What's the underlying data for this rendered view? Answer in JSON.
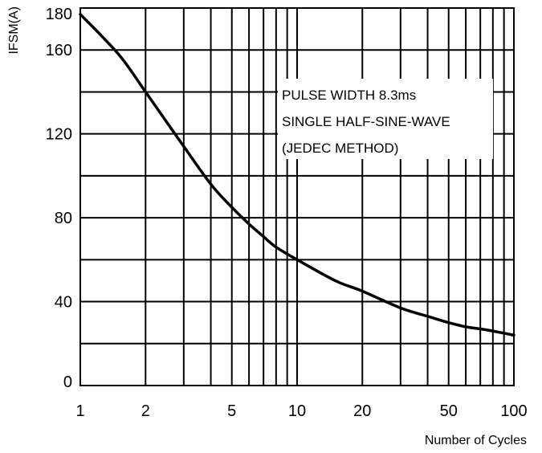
{
  "chart_data": {
    "type": "line",
    "title": "",
    "xlabel": "Number of Cycles",
    "ylabel": "IFSM(A)",
    "x_scale": "log",
    "xlim": [
      1,
      100
    ],
    "ylim": [
      0,
      180
    ],
    "x_ticks": [
      {
        "value": 1,
        "label": "1"
      },
      {
        "value": 2,
        "label": "2"
      },
      {
        "value": 5,
        "label": "5"
      },
      {
        "value": 10,
        "label": "10"
      },
      {
        "value": 20,
        "label": "20"
      },
      {
        "value": 50,
        "label": "50"
      },
      {
        "value": 100,
        "label": "100"
      }
    ],
    "x_grid": [
      1,
      2,
      3,
      4,
      5,
      6,
      7,
      8,
      9,
      10,
      20,
      30,
      40,
      50,
      60,
      70,
      80,
      90,
      100
    ],
    "y_ticks": [
      {
        "value": 0,
        "label": "0"
      },
      {
        "value": 40,
        "label": "40"
      },
      {
        "value": 80,
        "label": "80"
      },
      {
        "value": 120,
        "label": "120"
      },
      {
        "value": 160,
        "label": "160"
      },
      {
        "value": 180,
        "label": "180"
      }
    ],
    "y_grid": [
      0,
      20,
      40,
      60,
      80,
      100,
      120,
      140,
      160,
      180
    ],
    "grid": true,
    "annotation": [
      "PULSE WIDTH 8.3ms",
      "SINGLE HALF-SINE-WAVE",
      "(JEDEC METHOD)"
    ],
    "series": [
      {
        "x": [
          1,
          1.5,
          2,
          3,
          4,
          5,
          6,
          7,
          8,
          10,
          15,
          20,
          30,
          40,
          50,
          60,
          70,
          80,
          100
        ],
        "y": [
          177,
          158,
          140,
          114,
          96,
          85,
          77,
          71,
          66,
          60,
          50,
          45,
          37,
          33,
          30,
          28,
          27,
          26,
          24
        ],
        "color": "#000000"
      }
    ]
  }
}
